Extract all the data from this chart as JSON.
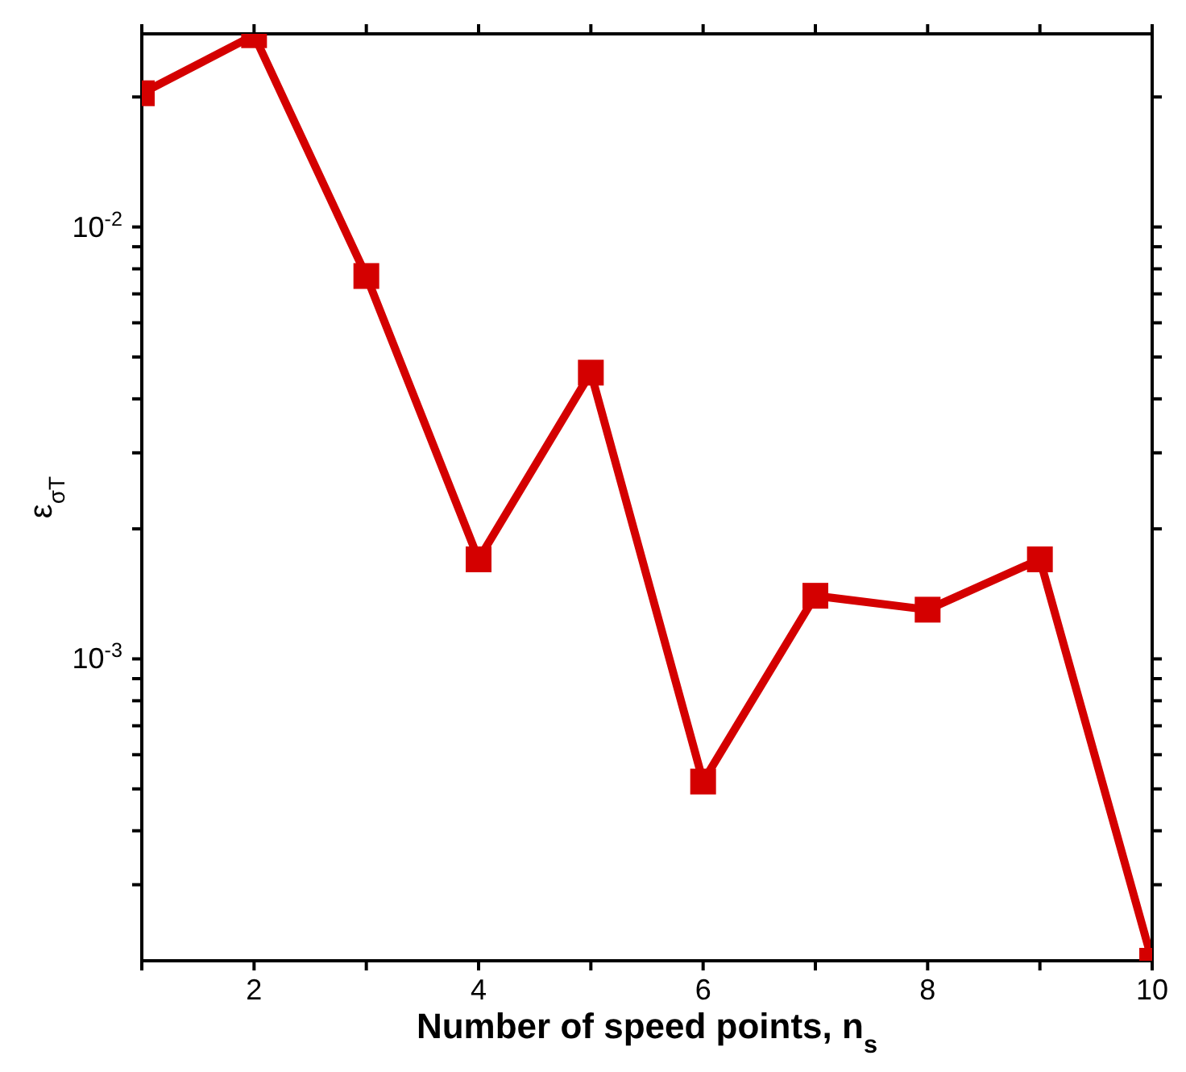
{
  "chart_data": {
    "type": "line",
    "xlabel": "Number of speed points, n$_{s}$",
    "ylabel": "ε$_{σT}$",
    "x": [
      1,
      2,
      3,
      4,
      5,
      6,
      7,
      8,
      9,
      10
    ],
    "series": [
      {
        "color": "#d40000",
        "values": [
          0.0204,
          0.0278,
          0.0077,
          0.0017,
          0.0046,
          0.00052,
          0.0014,
          0.0013,
          0.0017,
          0.0002
        ]
      }
    ],
    "xlim": [
      1,
      10
    ],
    "xticks": [
      {
        "value": 1,
        "label": null
      },
      2,
      {
        "value": 3,
        "label": null
      },
      4,
      {
        "value": 5,
        "label": null
      },
      6,
      {
        "value": 7,
        "label": null
      },
      8,
      {
        "value": 9,
        "label": null
      },
      10
    ],
    "ylim": [
      0.0002,
      0.028
    ],
    "yticks": [
      {
        "value": 0.0003,
        "label": null
      },
      {
        "value": 0.0004,
        "label": null
      },
      {
        "value": 0.0005,
        "label": null
      },
      {
        "value": 0.0006,
        "label": null
      },
      {
        "value": 0.0007,
        "label": null
      },
      {
        "value": 0.0008,
        "label": null
      },
      {
        "value": 0.0009,
        "label": null
      },
      {
        "value": 0.001,
        "label": "10$^{-3}$"
      },
      {
        "value": 0.002,
        "label": null
      },
      {
        "value": 0.003,
        "label": null
      },
      {
        "value": 0.004,
        "label": null
      },
      {
        "value": 0.005,
        "label": null
      },
      {
        "value": 0.006,
        "label": null
      },
      {
        "value": 0.007,
        "label": null
      },
      {
        "value": 0.008,
        "label": null
      },
      {
        "value": 0.009,
        "label": null
      },
      {
        "value": 0.01,
        "label": "10$^{-2}$"
      },
      {
        "value": 0.02,
        "label": null
      }
    ],
    "log": "y",
    "marker": "square",
    "line_style": "solid",
    "legend": false,
    "grid": false
  }
}
